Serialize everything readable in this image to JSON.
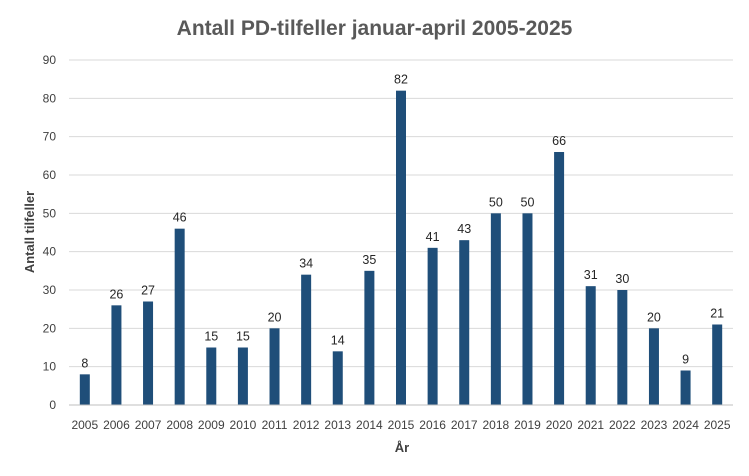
{
  "chart_data": {
    "type": "bar",
    "title": "Antall PD-tilfeller januar-april 2005-2025",
    "xlabel": "År",
    "ylabel": "Antall tilfeller",
    "categories": [
      "2005",
      "2006",
      "2007",
      "2008",
      "2009",
      "2010",
      "2011",
      "2012",
      "2013",
      "2014",
      "2015",
      "2016",
      "2017",
      "2018",
      "2019",
      "2020",
      "2021",
      "2022",
      "2023",
      "2024",
      "2025"
    ],
    "values": [
      8,
      26,
      27,
      46,
      15,
      15,
      20,
      34,
      14,
      35,
      82,
      41,
      43,
      50,
      50,
      66,
      31,
      30,
      20,
      9,
      21
    ],
    "ylim": [
      0,
      90
    ],
    "yticks": [
      0,
      10,
      20,
      30,
      40,
      50,
      60,
      70,
      80,
      90
    ],
    "grid": true,
    "legend": "none",
    "bar_color": "#1f4e79",
    "data_labels": true
  }
}
